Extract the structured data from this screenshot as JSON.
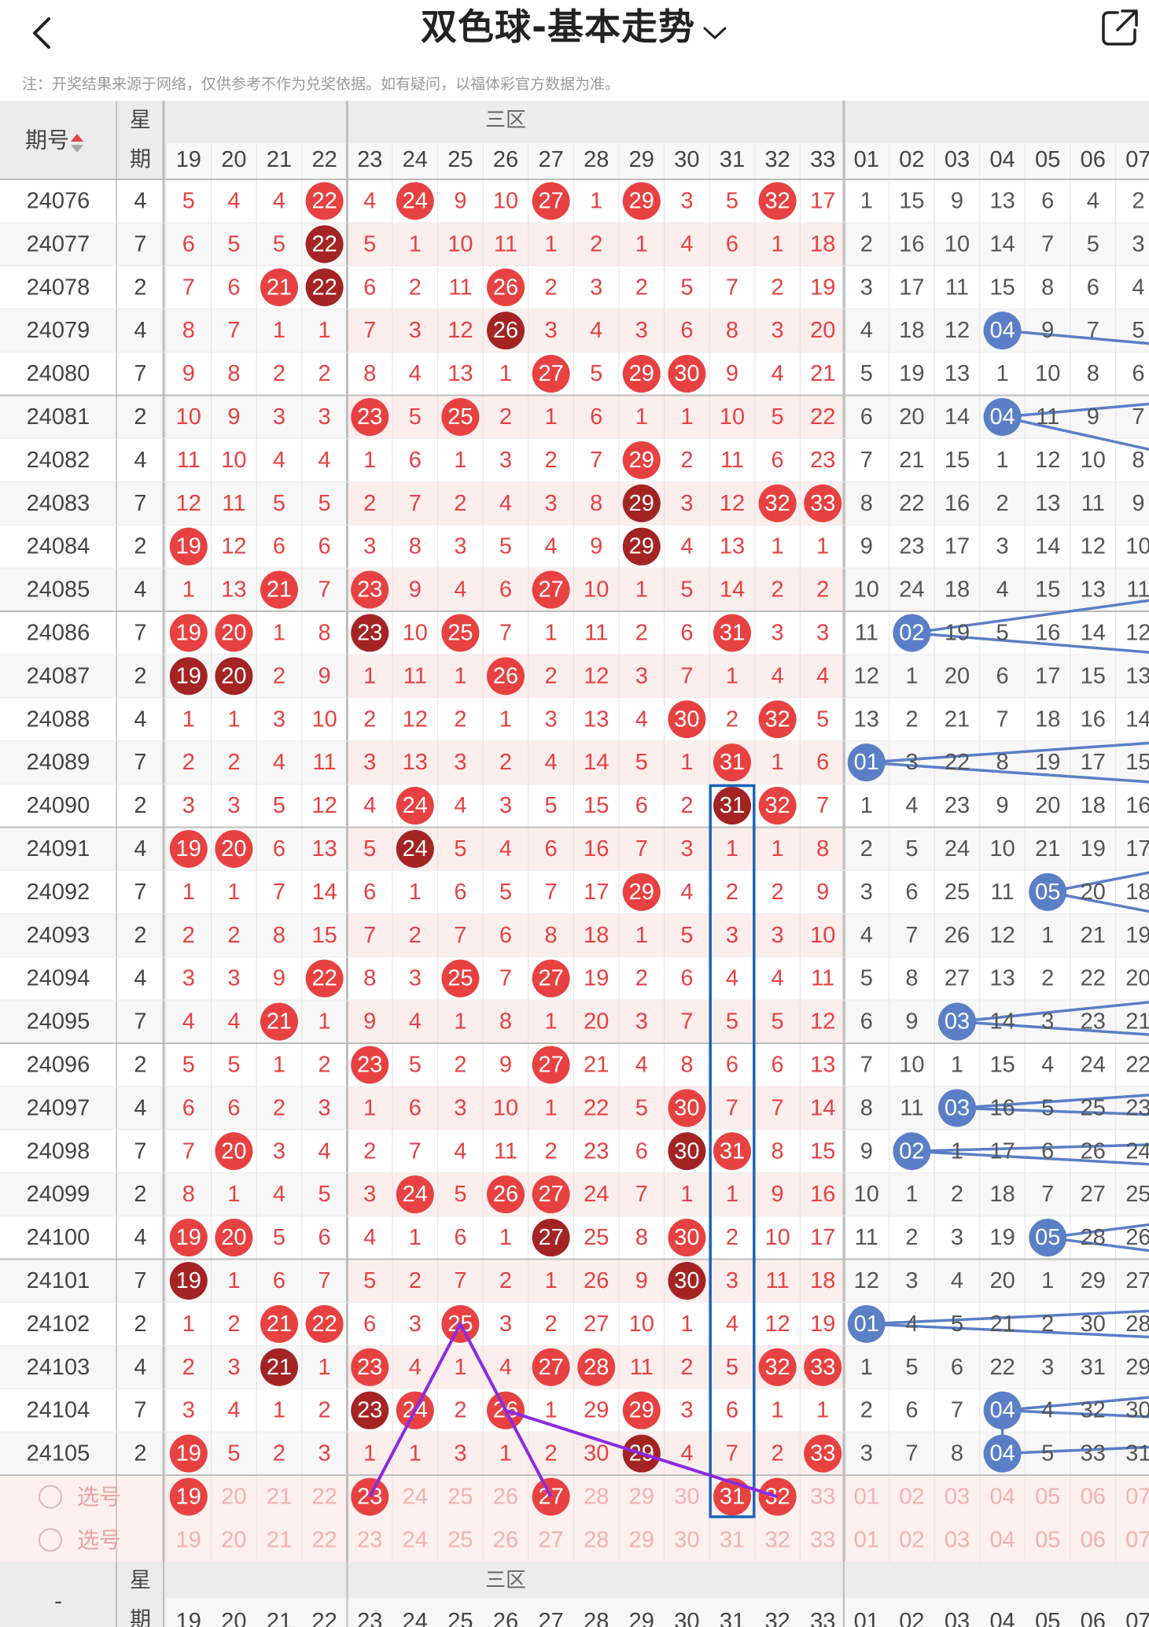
{
  "header": {
    "title": "双色球-基本走势",
    "notice": "注：开奖结果来源于网络，仅供参考不作为兑奖依据。如有疑问，以福体彩官方数据为准。"
  },
  "icons": {
    "back": "chevron-left-icon",
    "dropdown": "chevron-down-icon",
    "share": "share-external-icon",
    "radio": "radio-circle-icon"
  },
  "colors": {
    "red": "#e84141",
    "dark_red": "#a42323",
    "blue": "#5b7fc6",
    "line_blue": "#5b7fc6",
    "purple": "#8a2be2",
    "box": "#1d63b8",
    "pink_bg": "#fdeeee"
  },
  "table": {
    "col_period": "期号",
    "col_week": [
      "星",
      "期"
    ],
    "zone_label": "三区",
    "red_cols": [
      "19",
      "20",
      "21",
      "22",
      "23",
      "24",
      "25",
      "26",
      "27",
      "28",
      "29",
      "30",
      "31",
      "32",
      "33"
    ],
    "blue_cols": [
      "01",
      "02",
      "03",
      "04",
      "05",
      "06",
      "07"
    ],
    "rows": [
      {
        "p": "24076",
        "w": "4",
        "r": [
          5,
          4,
          4,
          22,
          4,
          24,
          9,
          10,
          27,
          1,
          29,
          3,
          5,
          32,
          17
        ],
        "b": [
          1,
          15,
          9,
          13,
          6,
          4,
          2
        ]
      },
      {
        "p": "24077",
        "w": "7",
        "r": [
          6,
          5,
          5,
          22,
          5,
          1,
          10,
          11,
          1,
          2,
          1,
          4,
          6,
          1,
          18
        ],
        "b": [
          2,
          16,
          10,
          14,
          7,
          5,
          3
        ]
      },
      {
        "p": "24078",
        "w": "2",
        "r": [
          7,
          6,
          21,
          22,
          6,
          2,
          11,
          26,
          2,
          3,
          2,
          5,
          7,
          2,
          19
        ],
        "b": [
          3,
          17,
          11,
          15,
          8,
          6,
          4
        ]
      },
      {
        "p": "24079",
        "w": "4",
        "r": [
          8,
          7,
          1,
          1,
          7,
          3,
          12,
          26,
          3,
          4,
          3,
          6,
          8,
          3,
          20
        ],
        "b": [
          4,
          18,
          12,
          4,
          9,
          7,
          5
        ]
      },
      {
        "p": "24080",
        "w": "7",
        "r": [
          9,
          8,
          2,
          2,
          8,
          4,
          13,
          1,
          27,
          5,
          29,
          30,
          9,
          4,
          21
        ],
        "b": [
          5,
          19,
          13,
          1,
          10,
          8,
          6
        ]
      },
      {
        "p": "24081",
        "w": "2",
        "r": [
          10,
          9,
          3,
          3,
          23,
          5,
          25,
          2,
          1,
          6,
          1,
          1,
          10,
          5,
          22
        ],
        "b": [
          6,
          20,
          14,
          4,
          11,
          9,
          7
        ]
      },
      {
        "p": "24082",
        "w": "4",
        "r": [
          11,
          10,
          4,
          4,
          1,
          6,
          1,
          3,
          2,
          7,
          29,
          2,
          11,
          6,
          23
        ],
        "b": [
          7,
          21,
          15,
          1,
          12,
          10,
          8
        ]
      },
      {
        "p": "24083",
        "w": "7",
        "r": [
          12,
          11,
          5,
          5,
          2,
          7,
          2,
          4,
          3,
          8,
          29,
          3,
          12,
          32,
          33
        ],
        "b": [
          8,
          22,
          16,
          2,
          13,
          11,
          9
        ]
      },
      {
        "p": "24084",
        "w": "2",
        "r": [
          19,
          12,
          6,
          6,
          3,
          8,
          3,
          5,
          4,
          9,
          29,
          4,
          13,
          1,
          1
        ],
        "b": [
          9,
          23,
          17,
          3,
          14,
          12,
          10
        ]
      },
      {
        "p": "24085",
        "w": "4",
        "r": [
          1,
          13,
          21,
          7,
          23,
          9,
          4,
          6,
          27,
          10,
          1,
          5,
          14,
          2,
          2
        ],
        "b": [
          10,
          24,
          18,
          4,
          15,
          13,
          11
        ]
      },
      {
        "p": "24086",
        "w": "7",
        "r": [
          19,
          20,
          1,
          8,
          23,
          10,
          25,
          7,
          1,
          11,
          2,
          6,
          31,
          3,
          3
        ],
        "b": [
          11,
          2,
          19,
          5,
          16,
          14,
          12
        ]
      },
      {
        "p": "24087",
        "w": "2",
        "r": [
          19,
          20,
          2,
          9,
          1,
          11,
          1,
          26,
          2,
          12,
          3,
          7,
          1,
          4,
          4
        ],
        "b": [
          12,
          1,
          20,
          6,
          17,
          15,
          13
        ]
      },
      {
        "p": "24088",
        "w": "4",
        "r": [
          1,
          1,
          3,
          10,
          2,
          12,
          2,
          1,
          3,
          13,
          4,
          30,
          2,
          32,
          5
        ],
        "b": [
          13,
          2,
          21,
          7,
          18,
          16,
          14
        ]
      },
      {
        "p": "24089",
        "w": "7",
        "r": [
          2,
          2,
          4,
          11,
          3,
          13,
          3,
          2,
          4,
          14,
          5,
          1,
          31,
          1,
          6
        ],
        "b": [
          1,
          3,
          22,
          8,
          19,
          17,
          15
        ]
      },
      {
        "p": "24090",
        "w": "2",
        "r": [
          3,
          3,
          5,
          12,
          4,
          24,
          4,
          3,
          5,
          15,
          6,
          2,
          31,
          32,
          7
        ],
        "b": [
          1,
          4,
          23,
          9,
          20,
          18,
          16
        ]
      },
      {
        "p": "24091",
        "w": "4",
        "r": [
          19,
          20,
          6,
          13,
          5,
          24,
          5,
          4,
          6,
          16,
          7,
          3,
          1,
          1,
          8
        ],
        "b": [
          2,
          5,
          24,
          10,
          21,
          19,
          17
        ]
      },
      {
        "p": "24092",
        "w": "7",
        "r": [
          1,
          1,
          7,
          14,
          6,
          1,
          6,
          5,
          7,
          17,
          29,
          4,
          2,
          2,
          9
        ],
        "b": [
          3,
          6,
          25,
          11,
          5,
          20,
          18
        ]
      },
      {
        "p": "24093",
        "w": "2",
        "r": [
          2,
          2,
          8,
          15,
          7,
          2,
          7,
          6,
          8,
          18,
          1,
          5,
          3,
          3,
          10
        ],
        "b": [
          4,
          7,
          26,
          12,
          1,
          21,
          19
        ]
      },
      {
        "p": "24094",
        "w": "4",
        "r": [
          3,
          3,
          9,
          22,
          8,
          3,
          25,
          7,
          27,
          19,
          2,
          6,
          4,
          4,
          11
        ],
        "b": [
          5,
          8,
          27,
          13,
          2,
          22,
          20
        ]
      },
      {
        "p": "24095",
        "w": "7",
        "r": [
          4,
          4,
          21,
          1,
          9,
          4,
          1,
          8,
          1,
          20,
          3,
          7,
          5,
          5,
          12
        ],
        "b": [
          6,
          9,
          3,
          14,
          3,
          23,
          21
        ]
      },
      {
        "p": "24096",
        "w": "2",
        "r": [
          5,
          5,
          1,
          2,
          23,
          5,
          2,
          9,
          27,
          21,
          4,
          8,
          6,
          6,
          13
        ],
        "b": [
          7,
          10,
          1,
          15,
          4,
          24,
          22
        ]
      },
      {
        "p": "24097",
        "w": "4",
        "r": [
          6,
          6,
          2,
          3,
          1,
          6,
          3,
          10,
          1,
          22,
          5,
          30,
          7,
          7,
          14
        ],
        "b": [
          8,
          11,
          3,
          16,
          5,
          25,
          23
        ]
      },
      {
        "p": "24098",
        "w": "7",
        "r": [
          7,
          20,
          3,
          4,
          2,
          7,
          4,
          11,
          2,
          23,
          6,
          30,
          31,
          8,
          15
        ],
        "b": [
          9,
          2,
          1,
          17,
          6,
          26,
          24
        ]
      },
      {
        "p": "24099",
        "w": "2",
        "r": [
          8,
          1,
          4,
          5,
          3,
          24,
          5,
          26,
          27,
          24,
          7,
          1,
          1,
          9,
          16
        ],
        "b": [
          10,
          1,
          2,
          18,
          7,
          27,
          25
        ]
      },
      {
        "p": "24100",
        "w": "4",
        "r": [
          19,
          20,
          5,
          6,
          4,
          1,
          6,
          1,
          27,
          25,
          8,
          30,
          2,
          10,
          17
        ],
        "b": [
          11,
          2,
          3,
          19,
          5,
          28,
          26
        ]
      },
      {
        "p": "24101",
        "w": "7",
        "r": [
          19,
          1,
          6,
          7,
          5,
          2,
          7,
          2,
          1,
          26,
          9,
          30,
          3,
          11,
          18
        ],
        "b": [
          12,
          3,
          4,
          20,
          1,
          29,
          27
        ]
      },
      {
        "p": "24102",
        "w": "2",
        "r": [
          1,
          2,
          21,
          22,
          6,
          3,
          25,
          3,
          2,
          27,
          10,
          1,
          4,
          12,
          19
        ],
        "b": [
          1,
          4,
          5,
          21,
          2,
          30,
          28
        ]
      },
      {
        "p": "24103",
        "w": "4",
        "r": [
          2,
          3,
          21,
          1,
          23,
          4,
          1,
          4,
          27,
          28,
          11,
          2,
          5,
          32,
          33
        ],
        "b": [
          1,
          5,
          6,
          22,
          3,
          31,
          29
        ]
      },
      {
        "p": "24104",
        "w": "7",
        "r": [
          3,
          4,
          1,
          2,
          23,
          24,
          2,
          26,
          1,
          29,
          29,
          3,
          6,
          1,
          1
        ],
        "b": [
          2,
          6,
          7,
          4,
          4,
          32,
          30
        ]
      },
      {
        "p": "24105",
        "w": "2",
        "r": [
          19,
          5,
          2,
          3,
          1,
          1,
          3,
          1,
          2,
          30,
          29,
          4,
          7,
          2,
          33
        ],
        "b": [
          3,
          7,
          8,
          4,
          5,
          33,
          31
        ]
      }
    ],
    "select_rows": [
      {
        "label": "选号",
        "picked": [
          "19",
          "23",
          "27",
          "31",
          "32"
        ]
      },
      {
        "label": "选号",
        "picked": []
      }
    ],
    "footer": {
      "left": "-",
      "week": [
        "星",
        "期"
      ],
      "zone_label": "三区"
    }
  },
  "blue_balls": [
    {
      "row": "24079",
      "col": "04"
    },
    {
      "row": "24081",
      "col": "04"
    },
    {
      "row": "24086",
      "col": "02"
    },
    {
      "row": "24089",
      "col": "01"
    },
    {
      "row": "24092",
      "col": "05"
    },
    {
      "row": "24095",
      "col": "03"
    },
    {
      "row": "24097",
      "col": "03"
    },
    {
      "row": "24098",
      "col": "02"
    },
    {
      "row": "24100",
      "col": "05"
    },
    {
      "row": "24102",
      "col": "01"
    },
    {
      "row": "24104",
      "col": "04"
    },
    {
      "row": "24105",
      "col": "04"
    }
  ]
}
